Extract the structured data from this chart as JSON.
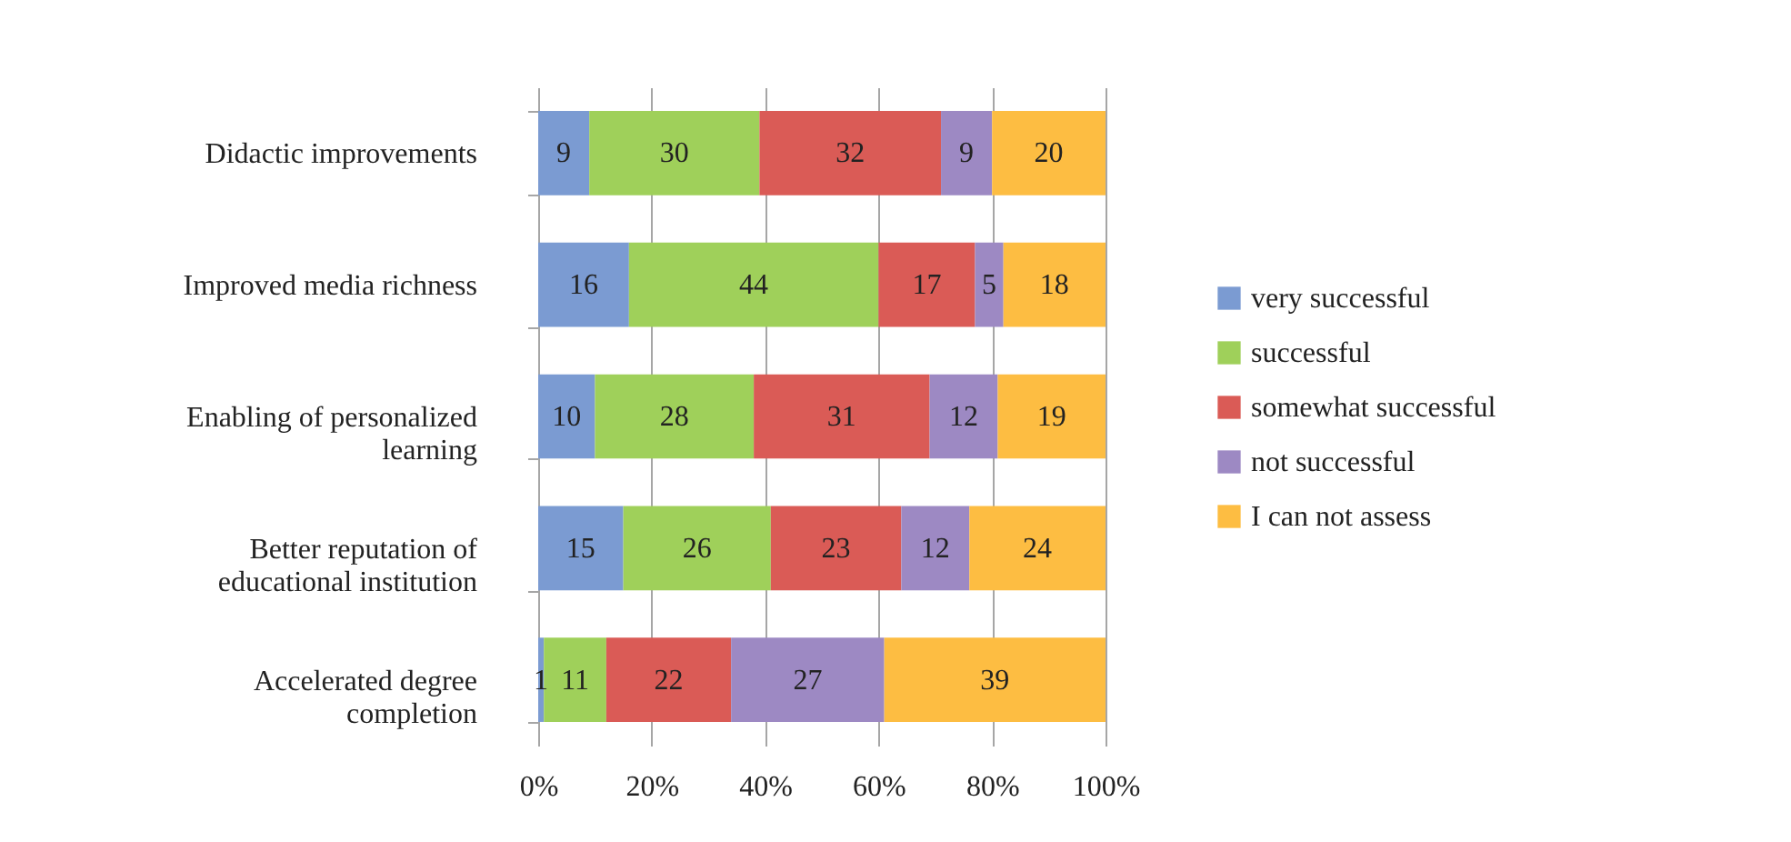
{
  "chart_data": {
    "type": "bar",
    "orientation": "horizontal",
    "stacked": true,
    "categories": [
      "Didactic improvements",
      "Improved media richness",
      "Enabling of personalized learning",
      "Better reputation of educational institution",
      "Accelerated degree completion"
    ],
    "series": [
      {
        "name": "very successful",
        "color": "#7b9bd2",
        "values": [
          9,
          16,
          10,
          15,
          1
        ]
      },
      {
        "name": "successful",
        "color": "#9fd05a",
        "values": [
          30,
          44,
          28,
          26,
          11
        ]
      },
      {
        "name": "somewhat successful",
        "color": "#da5b56",
        "values": [
          32,
          17,
          31,
          23,
          22
        ]
      },
      {
        "name": "not successful",
        "color": "#9d89c3",
        "values": [
          9,
          5,
          12,
          12,
          27
        ]
      },
      {
        "name": "I can not assess",
        "color": "#fdbd42",
        "values": [
          20,
          18,
          19,
          24,
          39
        ]
      }
    ],
    "xlim": [
      0,
      100
    ],
    "xticks": [
      {
        "value": 0,
        "label": "0%"
      },
      {
        "value": 20,
        "label": "20%"
      },
      {
        "value": 40,
        "label": "40%"
      },
      {
        "value": 60,
        "label": "60%"
      },
      {
        "value": 80,
        "label": "80%"
      },
      {
        "value": 100,
        "label": "100%"
      }
    ],
    "grid": "x",
    "legend": "right",
    "data_labels": true
  }
}
